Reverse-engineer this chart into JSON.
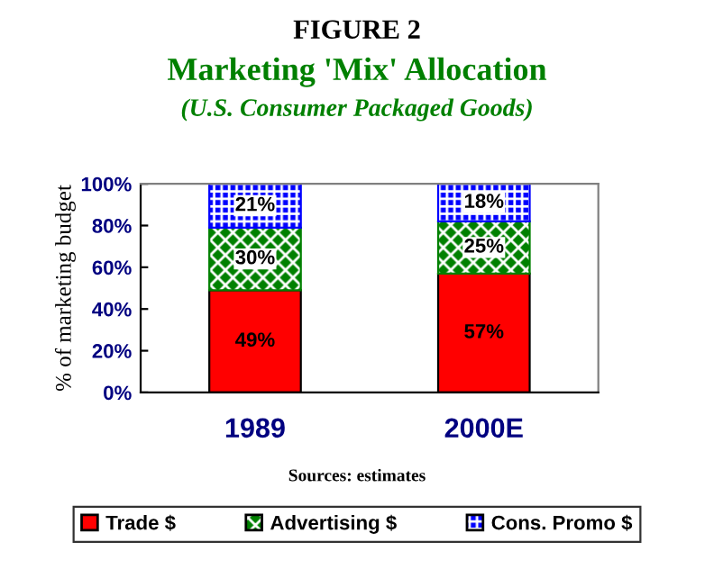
{
  "chart_data": {
    "type": "bar",
    "stacked": true,
    "title": "FIGURE 2",
    "subtitle": "Marketing 'Mix' Allocation",
    "annotations": [
      "(U.S. Consumer Packaged Goods)",
      "Sources: estimates"
    ],
    "ylabel": "% of marketing budget",
    "categories": [
      "1989",
      "2000E"
    ],
    "series": [
      {
        "name": "Trade $",
        "color": "#ff0000",
        "values": [
          49,
          57
        ],
        "value_labels": [
          "49%",
          "57%"
        ]
      },
      {
        "name": "Advertising $",
        "color": "#008000",
        "values": [
          30,
          25
        ],
        "value_labels": [
          "30%",
          "25%"
        ]
      },
      {
        "name": "Cons. Promo $",
        "color": "#0000ff",
        "values": [
          21,
          18
        ],
        "value_labels": [
          "21%",
          "18%"
        ]
      }
    ],
    "ylim": [
      0,
      100
    ],
    "yticks": [
      {
        "value": 0,
        "label": "0%"
      },
      {
        "value": 20,
        "label": "20%"
      },
      {
        "value": 40,
        "label": "40%"
      },
      {
        "value": 60,
        "label": "60%"
      },
      {
        "value": 80,
        "label": "80%"
      },
      {
        "value": 100,
        "label": "100%"
      }
    ],
    "grid": false,
    "legend": "bottom"
  }
}
